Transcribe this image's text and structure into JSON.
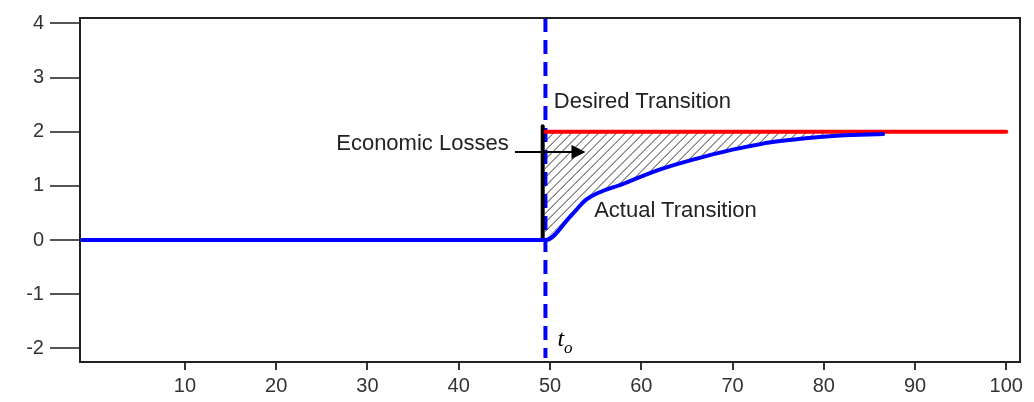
{
  "chart_data": {
    "type": "line",
    "xlim": [
      -1.5,
      101.5
    ],
    "ylim": [
      -2.25,
      4.1
    ],
    "xticks": [
      10,
      20,
      30,
      40,
      50,
      60,
      70,
      80,
      90,
      100
    ],
    "yticks": [
      -2,
      -1,
      0,
      1,
      2,
      3,
      4
    ],
    "grid": false,
    "legend": false,
    "marker": "none",
    "line_style": "solid",
    "series": [
      {
        "color": "#0000ff",
        "x": [
          -1.5,
          49.5,
          52.3,
          54,
          58.2,
          62,
          66,
          70,
          74,
          78,
          81.8,
          86.5
        ],
        "values": [
          0,
          0,
          0.45,
          0.75,
          1.05,
          1.3,
          1.5,
          1.67,
          1.8,
          1.88,
          1.93,
          1.96
        ]
      },
      {
        "color": "#ff0000",
        "x": [
          49.5,
          100
        ],
        "values": [
          2,
          2
        ]
      },
      {
        "color": "#000000",
        "x": [
          49.2,
          49.2
        ],
        "values": [
          0,
          2.1
        ]
      }
    ],
    "ref_lines": [
      {
        "axis": "x",
        "value": 49.5,
        "label": "t$_{o}$",
        "color": "#0000ff",
        "line_style": "dashed"
      }
    ],
    "annotations": [
      "Desired Transition",
      "Actual Transition",
      "Economic Losses"
    ]
  }
}
